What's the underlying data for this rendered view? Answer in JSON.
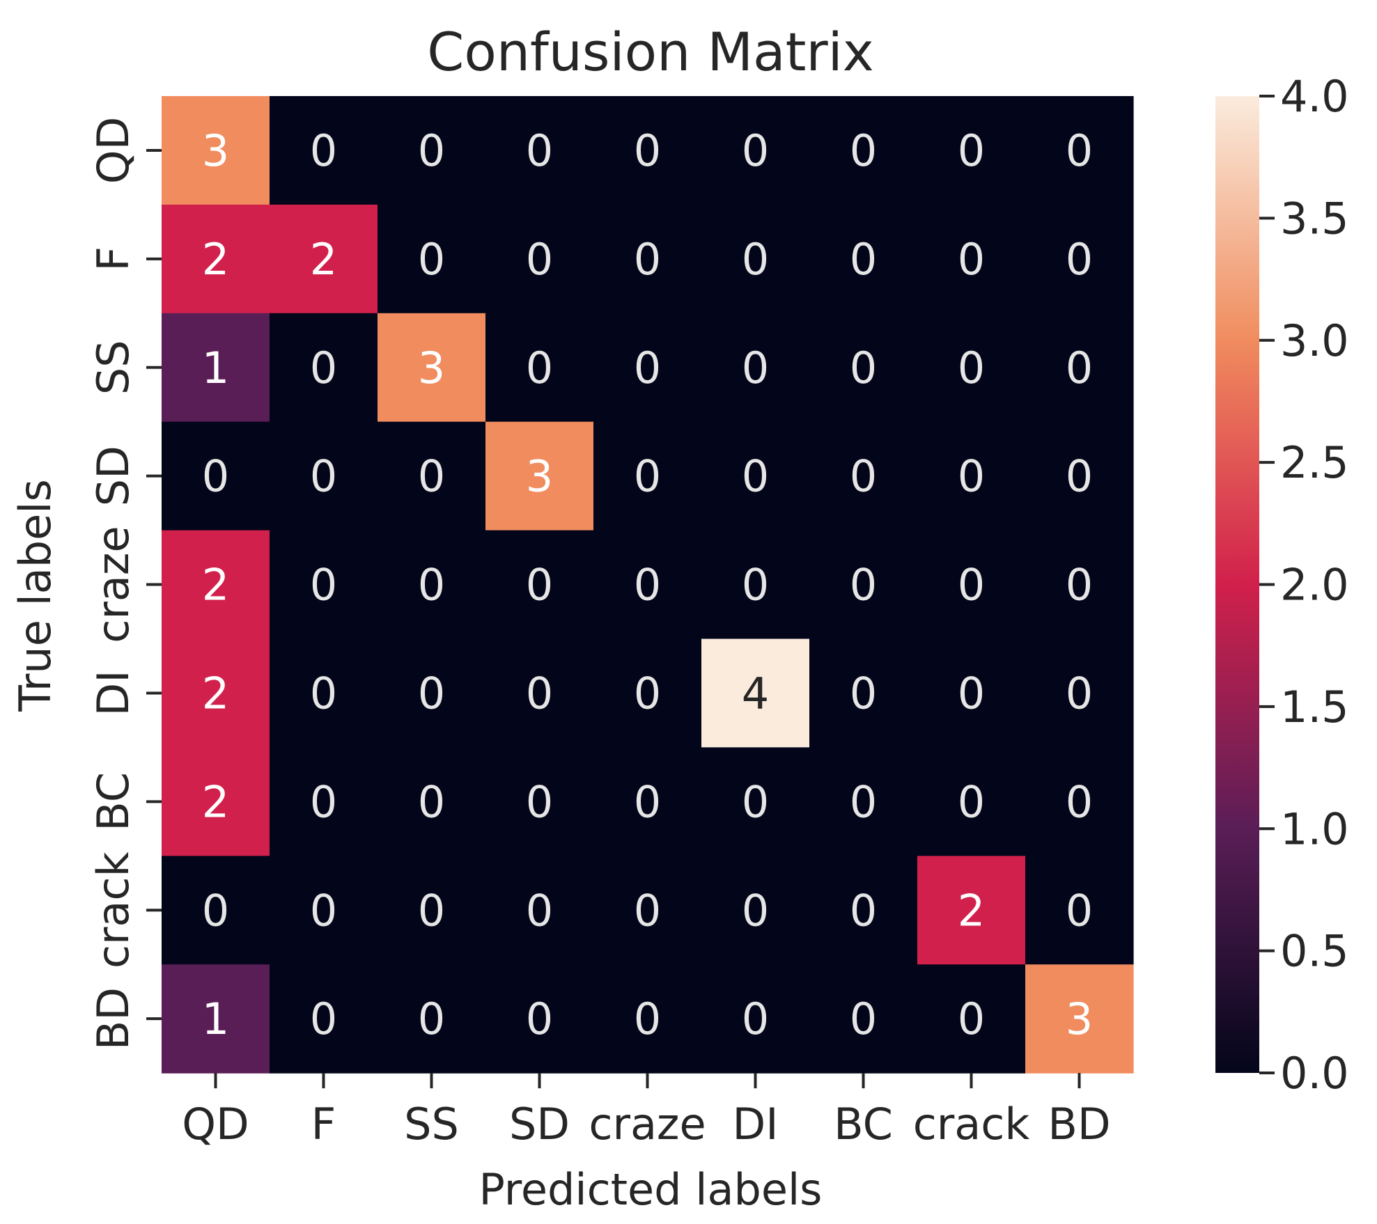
{
  "chart_data": {
    "type": "heatmap",
    "title": "Confusion Matrix",
    "xlabel": "Predicted labels",
    "ylabel": "True labels",
    "x_categories": [
      "QD",
      "F",
      "SS",
      "SD",
      "craze",
      "DI",
      "BC",
      "crack",
      "BD"
    ],
    "y_categories": [
      "QD",
      "F",
      "SS",
      "SD",
      "craze",
      "DI",
      "BC",
      "crack",
      "BD"
    ],
    "values": [
      [
        3,
        0,
        0,
        0,
        0,
        0,
        0,
        0,
        0
      ],
      [
        2,
        2,
        0,
        0,
        0,
        0,
        0,
        0,
        0
      ],
      [
        1,
        0,
        3,
        0,
        0,
        0,
        0,
        0,
        0
      ],
      [
        0,
        0,
        0,
        3,
        0,
        0,
        0,
        0,
        0
      ],
      [
        2,
        0,
        0,
        0,
        0,
        0,
        0,
        0,
        0
      ],
      [
        2,
        0,
        0,
        0,
        0,
        4,
        0,
        0,
        0
      ],
      [
        2,
        0,
        0,
        0,
        0,
        0,
        0,
        0,
        0
      ],
      [
        0,
        0,
        0,
        0,
        0,
        0,
        0,
        2,
        0
      ],
      [
        1,
        0,
        0,
        0,
        0,
        0,
        0,
        0,
        3
      ]
    ],
    "colorbar": {
      "range": [
        0,
        4
      ],
      "ticks": [
        "0.0",
        "0.5",
        "1.0",
        "1.5",
        "2.0",
        "2.5",
        "3.0",
        "3.5",
        "4.0"
      ],
      "tick_values": [
        0,
        0.5,
        1,
        1.5,
        2,
        2.5,
        3,
        3.5,
        4
      ]
    },
    "colormap": "rocket",
    "colors": {
      "v0": "#03051a",
      "v1": "#5a1e56",
      "v2": "#d1204b",
      "v3": "#f08c5e",
      "v4": "#faebdd"
    }
  }
}
